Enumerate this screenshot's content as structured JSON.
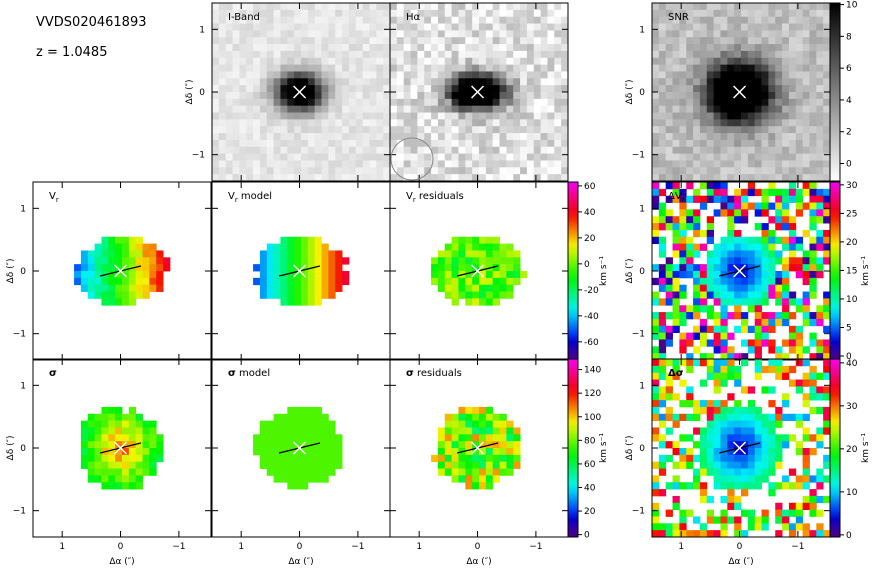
{
  "header": {
    "object": "VVDS020461893",
    "redshift": "z = 1.0485"
  },
  "axes": {
    "x_label": "Δα (″)",
    "y_label": "Δδ (″)",
    "xlim": [
      1.5,
      -1.55
    ],
    "ylim": [
      -1.42,
      1.42
    ],
    "ticks": [
      {
        "value": 1,
        "label": "1"
      },
      {
        "value": 0,
        "label": "0"
      },
      {
        "value": -1,
        "label": "−1"
      }
    ]
  },
  "panels": [
    {
      "title": "I-Band"
    },
    {
      "title": "Hα"
    },
    {
      "title": "SNR"
    },
    {
      "title": "V",
      "sub": "r"
    },
    {
      "title": "V",
      "sub": "r",
      "suffix": " model"
    },
    {
      "title": "V",
      "sub": "r",
      "suffix": " residuals"
    },
    {
      "title": "ΔV",
      "sub": "r"
    },
    {
      "title": "σ"
    },
    {
      "title": "σ",
      "suffix": " model"
    },
    {
      "title": "σ",
      "suffix": " residuals"
    },
    {
      "title": "Δσ"
    }
  ],
  "colorbars": [
    {
      "lim": [
        -74,
        63
      ],
      "ticks": [
        60,
        40,
        20,
        0,
        -20,
        -40,
        -60
      ],
      "unit": "km s⁻¹"
    },
    {
      "lim": [
        -2,
        149
      ],
      "ticks": [
        140,
        120,
        100,
        80,
        60,
        40,
        20,
        0
      ],
      "unit": "km s⁻¹"
    },
    {
      "lim": [
        -1.1,
        10.1
      ],
      "ticks": [
        10,
        8,
        6,
        4,
        2,
        0
      ]
    },
    {
      "lim": [
        -0.7,
        30.5
      ],
      "ticks": [
        30,
        25,
        20,
        15,
        10,
        5,
        0
      ],
      "unit": "km s⁻¹"
    },
    {
      "lim": [
        -0.5,
        40.9
      ],
      "ticks": [
        40,
        30,
        20,
        10,
        0
      ],
      "unit": "km s⁻¹"
    }
  ]
}
